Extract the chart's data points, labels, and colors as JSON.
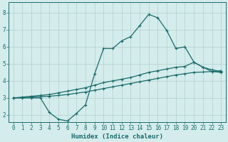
{
  "xlabel": "Humidex (Indice chaleur)",
  "bg_color": "#d4ecec",
  "grid_color": "#b8d4d4",
  "line_color": "#1a6b6b",
  "xlim": [
    -0.5,
    23.5
  ],
  "ylim": [
    1.6,
    8.6
  ],
  "yticks": [
    2,
    3,
    4,
    5,
    6,
    7,
    8
  ],
  "xticks": [
    0,
    1,
    2,
    3,
    4,
    5,
    6,
    7,
    8,
    9,
    10,
    11,
    12,
    13,
    14,
    15,
    16,
    17,
    18,
    19,
    20,
    21,
    22,
    23
  ],
  "line1_x": [
    0,
    1,
    2,
    3,
    4,
    5,
    6,
    7,
    8,
    9,
    10,
    11,
    12,
    13,
    14,
    15,
    16,
    17,
    18,
    19,
    20,
    21,
    22,
    23
  ],
  "line1_y": [
    3.0,
    3.0,
    3.0,
    3.0,
    2.15,
    1.75,
    1.65,
    2.1,
    2.6,
    4.4,
    5.9,
    5.9,
    6.35,
    6.6,
    7.25,
    7.9,
    7.7,
    6.95,
    5.9,
    6.0,
    5.1,
    4.8,
    4.55,
    4.5
  ],
  "line2_x": [
    0,
    1,
    2,
    3,
    4,
    5,
    6,
    7,
    8,
    9,
    10,
    11,
    12,
    13,
    14,
    15,
    16,
    17,
    18,
    19,
    20,
    21,
    22,
    23
  ],
  "line2_y": [
    3.0,
    3.05,
    3.1,
    3.15,
    3.2,
    3.3,
    3.4,
    3.5,
    3.6,
    3.75,
    3.9,
    4.0,
    4.1,
    4.2,
    4.35,
    4.5,
    4.6,
    4.7,
    4.8,
    4.85,
    5.1,
    4.8,
    4.65,
    4.55
  ],
  "line3_x": [
    0,
    1,
    2,
    3,
    4,
    5,
    6,
    7,
    8,
    9,
    10,
    11,
    12,
    13,
    14,
    15,
    16,
    17,
    18,
    19,
    20,
    21,
    22,
    23
  ],
  "line3_y": [
    3.0,
    3.02,
    3.05,
    3.08,
    3.1,
    3.15,
    3.2,
    3.28,
    3.35,
    3.45,
    3.55,
    3.65,
    3.75,
    3.85,
    3.95,
    4.05,
    4.15,
    4.25,
    4.35,
    4.42,
    4.5,
    4.52,
    4.55,
    4.6
  ]
}
